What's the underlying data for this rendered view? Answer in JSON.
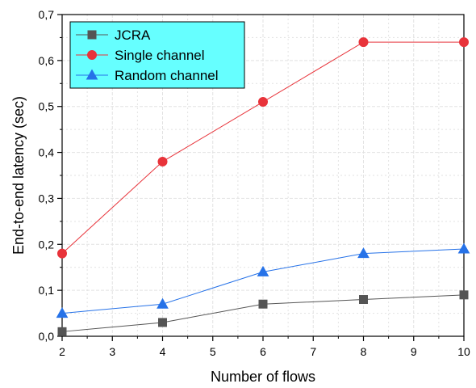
{
  "chart_data": {
    "type": "line",
    "xlabel": "Number of flows",
    "ylabel": "End-to-end latency (sec)",
    "xlim": [
      2,
      10
    ],
    "ylim": [
      0,
      0.7
    ],
    "x_ticks": [
      "2",
      "3",
      "4",
      "5",
      "6",
      "7",
      "8",
      "9",
      "10"
    ],
    "y_ticks": [
      "0,0",
      "0,1",
      "0,2",
      "0,3",
      "0,4",
      "0,5",
      "0,6",
      "0,7"
    ],
    "grid": true,
    "legend_position": "top-left",
    "legend_background": "#66ffff",
    "x": [
      2,
      4,
      6,
      8,
      10
    ],
    "series": [
      {
        "name": "JCRA",
        "marker": "square",
        "color": "#555555",
        "values": [
          0.01,
          0.03,
          0.07,
          0.08,
          0.09
        ]
      },
      {
        "name": "Single channel",
        "marker": "circle",
        "color": "#e8333a",
        "values": [
          0.18,
          0.38,
          0.51,
          0.64,
          0.64
        ]
      },
      {
        "name": "Random channel",
        "marker": "triangle",
        "color": "#2672e8",
        "values": [
          0.05,
          0.07,
          0.14,
          0.18,
          0.19
        ]
      }
    ]
  }
}
